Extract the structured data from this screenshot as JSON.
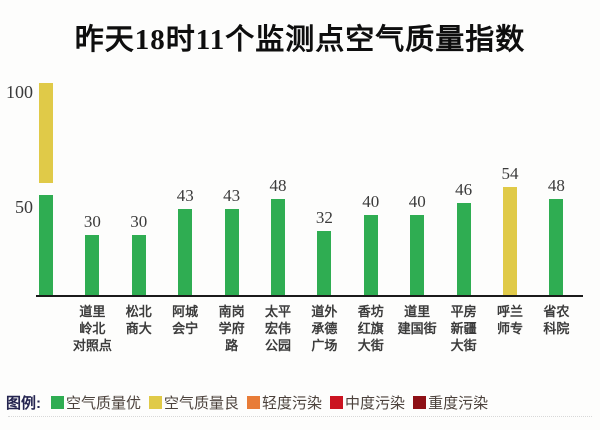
{
  "title": "昨天18时11个监测点空气质量指数",
  "chart_data": {
    "type": "bar",
    "title": "昨天18时11个监测点空气质量指数",
    "categories": [
      "道里岭北对照点",
      "松北商大",
      "阿城会宁",
      "南岗学府路",
      "太平宏伟公园",
      "道外承德广场",
      "香坊红旗大街",
      "道里建国街",
      "平房新疆大街",
      "呼兰师专",
      "省农科院"
    ],
    "category_lines": [
      [
        "道里",
        "岭北",
        "对照点"
      ],
      [
        "松北",
        "商大"
      ],
      [
        "阿城",
        "会宁"
      ],
      [
        "南岗",
        "学府",
        "路"
      ],
      [
        "太平",
        "宏伟",
        "公园"
      ],
      [
        "道外",
        "承德",
        "广场"
      ],
      [
        "香坊",
        "红旗",
        "大街"
      ],
      [
        "道里",
        "建国街"
      ],
      [
        "平房",
        "新疆",
        "大街"
      ],
      [
        "呼兰",
        "师专"
      ],
      [
        "省农",
        "科院"
      ]
    ],
    "values": [
      30,
      30,
      43,
      43,
      48,
      32,
      40,
      40,
      46,
      54,
      48
    ],
    "xlabel": "",
    "ylabel": "",
    "ylim": [
      0,
      100
    ],
    "yticks": [
      50,
      100
    ],
    "grid": false,
    "legend_position": "bottom",
    "level_threshold_excellent_max": 50,
    "colors": {
      "excellent": "#2fad52",
      "good": "#e0ca48"
    },
    "axis_color_bar": {
      "segments": [
        {
          "range": [
            0,
            50
          ],
          "level": "空气质量优",
          "color": "#2fad52"
        },
        {
          "range": [
            50,
            100
          ],
          "level": "空气质量良",
          "color": "#e0ca48"
        }
      ]
    }
  },
  "legend": {
    "title": "图例:",
    "items": [
      {
        "label": "空气质量优",
        "color": "#2fad52"
      },
      {
        "label": "空气质量良",
        "color": "#e0ca48"
      },
      {
        "label": "轻度污染",
        "color": "#e87c38"
      },
      {
        "label": "中度污染",
        "color": "#cb1421"
      },
      {
        "label": "重度污染",
        "color": "#8e1016"
      }
    ]
  }
}
